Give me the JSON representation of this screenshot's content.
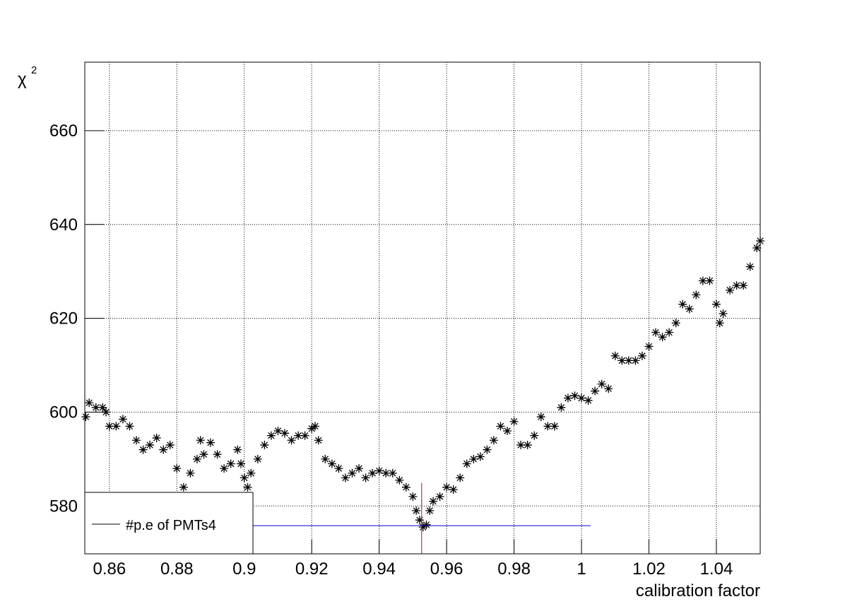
{
  "chart_data": {
    "type": "scatter",
    "xlabel": "calibration factor",
    "ylabel": "χ",
    "ylabel_superscript": "2",
    "xlim": [
      0.8527,
      1.053
    ],
    "ylim": [
      569.8,
      674.6
    ],
    "xticks": [
      0.86,
      0.88,
      0.9,
      0.92,
      0.94,
      0.96,
      0.98,
      1,
      1.02,
      1.04
    ],
    "yticks": [
      580,
      600,
      620,
      640,
      660
    ],
    "grid": true,
    "legend": "bottom-left",
    "series": [
      {
        "name": "#p.e of PMTs4",
        "color": "#000000",
        "x": [
          0.853,
          0.854,
          0.856,
          0.858,
          0.859,
          0.86,
          0.862,
          0.864,
          0.866,
          0.868,
          0.87,
          0.872,
          0.874,
          0.876,
          0.878,
          0.88,
          0.882,
          0.884,
          0.886,
          0.887,
          0.888,
          0.89,
          0.892,
          0.894,
          0.896,
          0.898,
          0.899,
          0.9,
          0.901,
          0.902,
          0.904,
          0.906,
          0.908,
          0.91,
          0.912,
          0.914,
          0.916,
          0.918,
          0.92,
          0.921,
          0.922,
          0.924,
          0.926,
          0.928,
          0.93,
          0.932,
          0.934,
          0.936,
          0.938,
          0.94,
          0.942,
          0.944,
          0.946,
          0.948,
          0.95,
          0.951,
          0.952,
          0.953,
          0.954,
          0.955,
          0.956,
          0.958,
          0.96,
          0.962,
          0.964,
          0.966,
          0.968,
          0.97,
          0.972,
          0.974,
          0.976,
          0.978,
          0.98,
          0.982,
          0.984,
          0.986,
          0.988,
          0.99,
          0.992,
          0.994,
          0.996,
          0.998,
          1.0,
          1.002,
          1.004,
          1.006,
          1.008,
          1.01,
          1.012,
          1.014,
          1.016,
          1.018,
          1.02,
          1.022,
          1.024,
          1.026,
          1.028,
          1.03,
          1.032,
          1.034,
          1.036,
          1.038,
          1.04,
          1.041,
          1.042,
          1.044,
          1.046,
          1.048,
          1.05,
          1.052,
          1.053
        ],
        "values": [
          599,
          602,
          601,
          601,
          600,
          597,
          597,
          598.5,
          597,
          594,
          592,
          593,
          594.5,
          592,
          593,
          588,
          584,
          587,
          590,
          594,
          591,
          593.5,
          591,
          588,
          589,
          592,
          589,
          586,
          584,
          587,
          590,
          593,
          595,
          596,
          595.5,
          594,
          595,
          595,
          596.5,
          597,
          594,
          590,
          589,
          588,
          586,
          587,
          588,
          586,
          587,
          587.5,
          587,
          587,
          585.5,
          584,
          582,
          579,
          577,
          575.5,
          576,
          579,
          581,
          582,
          584,
          583.5,
          586,
          589,
          590,
          590.5,
          592,
          594,
          597,
          596,
          598,
          593,
          593,
          595,
          599,
          597,
          597,
          601,
          603,
          603.5,
          603,
          602.5,
          604.5,
          606,
          605,
          612,
          611,
          611,
          611,
          612,
          614,
          617,
          616,
          617,
          619,
          623,
          622,
          625,
          628,
          628,
          623,
          619,
          621,
          626,
          627,
          627,
          631,
          635,
          636.5
        ]
      }
    ],
    "vline": {
      "x": 0.9526,
      "y": [
        569.8,
        584.9
      ],
      "color": "#cc0000"
    },
    "hline": {
      "y": 575.8,
      "x": [
        0.8527,
        1.0027
      ],
      "color": "#0000cc"
    }
  }
}
